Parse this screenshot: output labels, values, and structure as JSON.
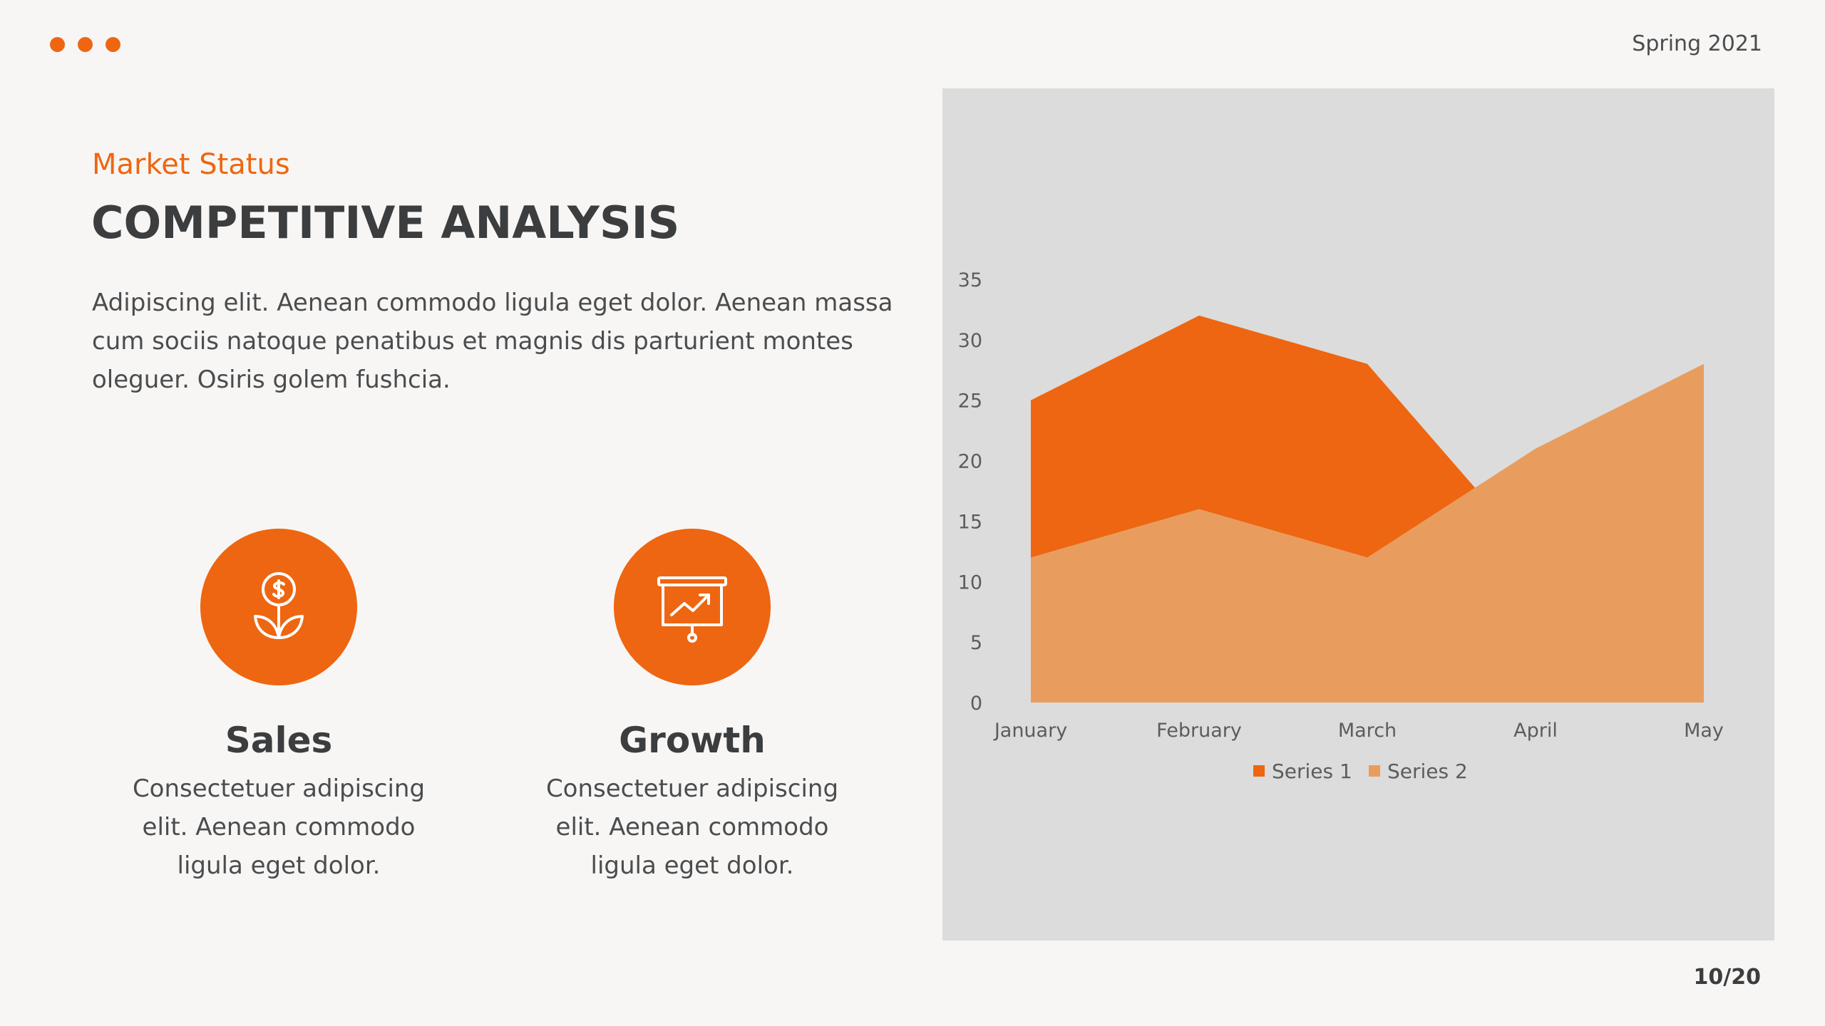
{
  "header": {
    "period": "Spring 2021",
    "page": "10/20"
  },
  "slide": {
    "subtitle": "Market Status",
    "title": "COMPETITIVE ANALYSIS",
    "body": "Adipiscing elit. Aenean commodo ligula eget dolor. Aenean massa cum sociis natoque penatibus et magnis dis parturient montes oleguer. Osiris golem fushcia."
  },
  "features": [
    {
      "icon": "money-plant-icon",
      "title": "Sales",
      "text": "Consectetuer adipiscing elit. Aenean commodo ligula eget dolor."
    },
    {
      "icon": "presentation-chart-icon",
      "title": "Growth",
      "text": "Consectetuer adipiscing elit. Aenean commodo ligula eget dolor."
    }
  ],
  "colors": {
    "accent": "#ee6611",
    "series2": "#e89d5f",
    "panel": "#dcdcdc"
  },
  "chart_data": {
    "type": "area",
    "categories": [
      "January",
      "February",
      "March",
      "April",
      "May"
    ],
    "series": [
      {
        "name": "Series 1",
        "values": [
          25,
          32,
          28,
          12,
          15
        ],
        "color": "#ee6611"
      },
      {
        "name": "Series 2",
        "values": [
          12,
          16,
          12,
          21,
          28
        ],
        "color": "#e89d5f"
      }
    ],
    "ylim": [
      0,
      35
    ],
    "yticks": [
      0,
      5,
      10,
      15,
      20,
      25,
      30,
      35
    ],
    "legend": "bottom",
    "grid": false
  }
}
